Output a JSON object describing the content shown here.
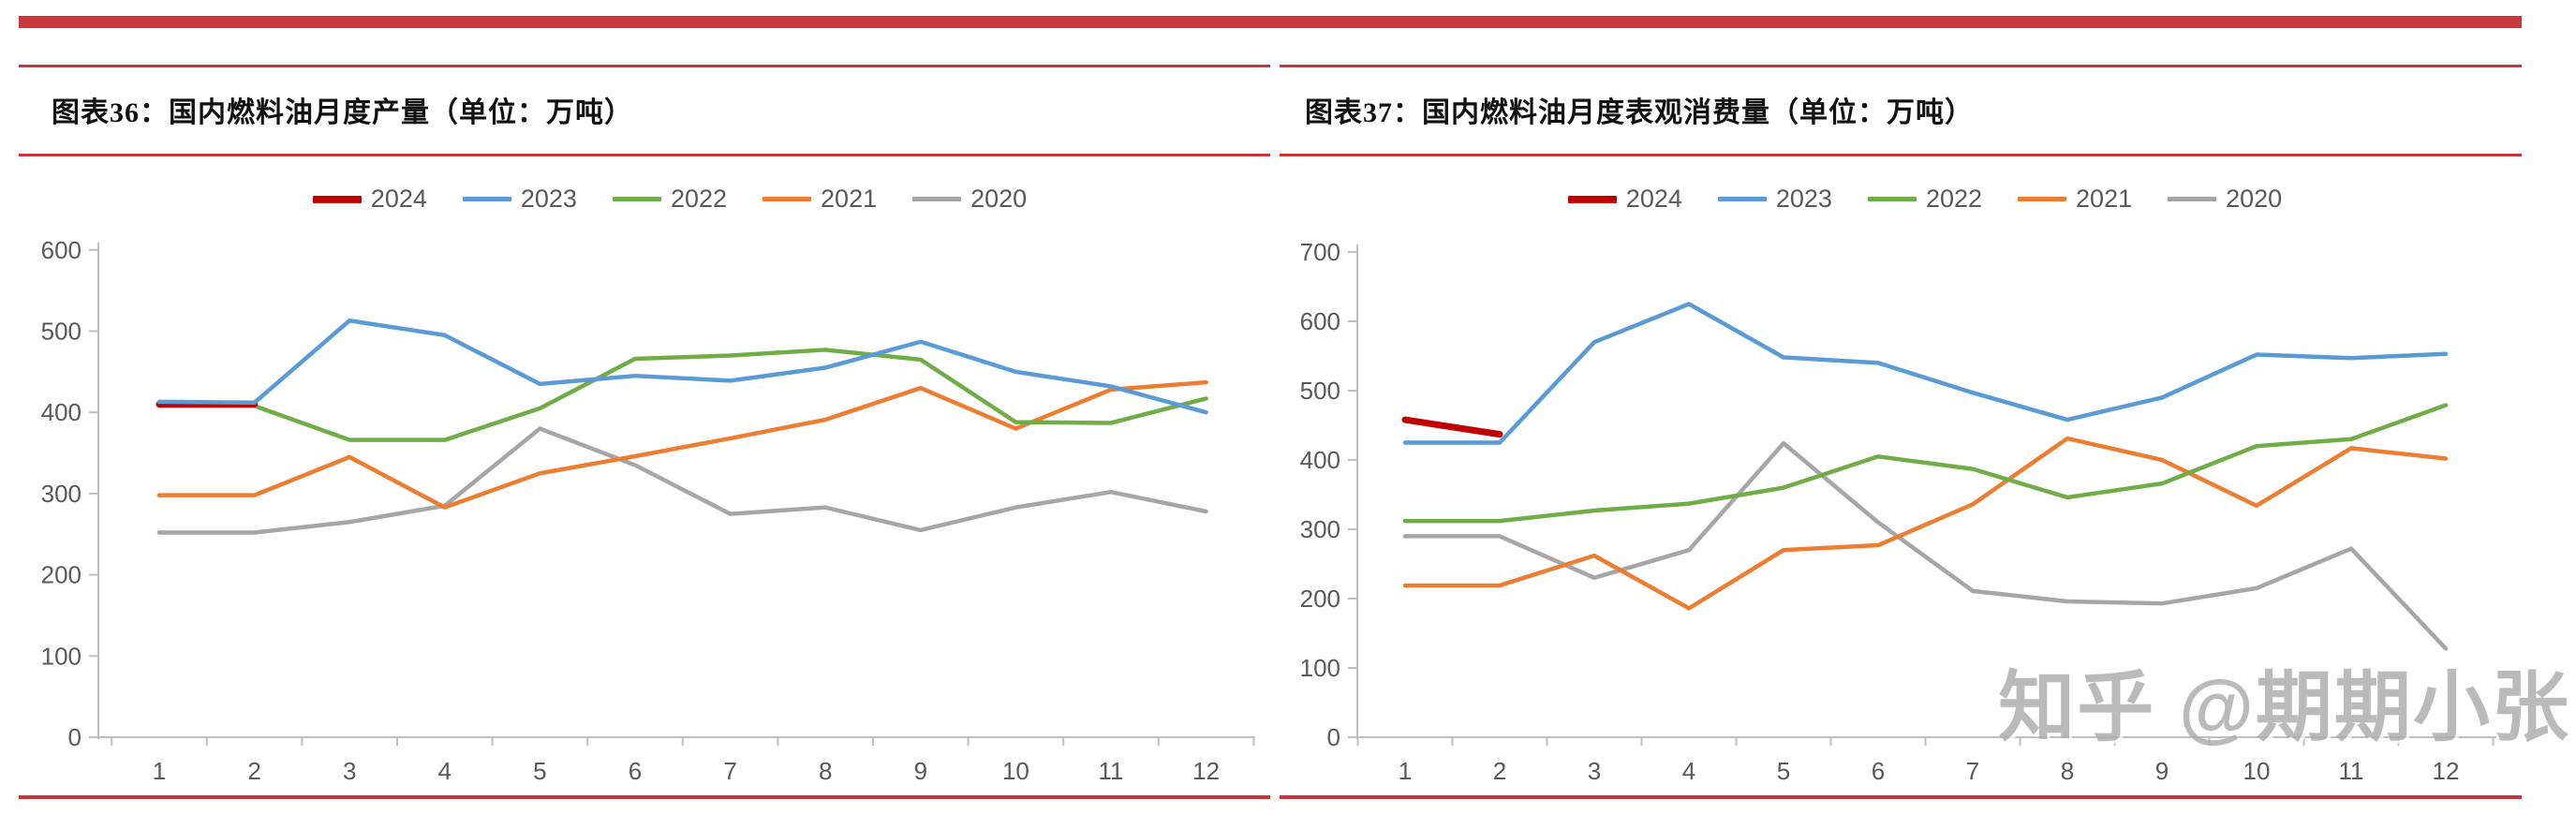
{
  "watermark": {
    "text": "知乎 @期期小张"
  },
  "accent_rule_color": "#c4373c",
  "axis_color": "#bfbfbf",
  "label_color": "#595959",
  "chart_data": [
    {
      "type": "line",
      "title": "图表36：国内燃料油月度产量（单位：万吨）",
      "unit": "万吨",
      "categories": [
        "1",
        "2",
        "3",
        "4",
        "5",
        "6",
        "7",
        "8",
        "9",
        "10",
        "11",
        "12"
      ],
      "ylim": [
        0,
        600
      ],
      "ytick_step": 100,
      "yticks": [
        0,
        100,
        200,
        300,
        400,
        500,
        600
      ],
      "grid": false,
      "legend_position": "top",
      "series": [
        {
          "name": "2024",
          "color": "#c00000",
          "thick": true,
          "values": [
            410,
            410
          ]
        },
        {
          "name": "2023",
          "color": "#5b9bd5",
          "values": [
            413,
            412,
            513,
            495,
            435,
            445,
            439,
            455,
            487,
            450,
            432,
            400
          ]
        },
        {
          "name": "2022",
          "color": "#70ad47",
          "values": [
            408,
            408,
            366,
            366,
            405,
            466,
            470,
            477,
            465,
            388,
            387,
            417
          ]
        },
        {
          "name": "2021",
          "color": "#ed7d31",
          "values": [
            298,
            298,
            345,
            283,
            325,
            346,
            368,
            391,
            430,
            380,
            428,
            437
          ]
        },
        {
          "name": "2020",
          "color": "#a6a6a6",
          "values": [
            252,
            252,
            265,
            285,
            380,
            335,
            275,
            283,
            255,
            283,
            302,
            278
          ]
        }
      ]
    },
    {
      "type": "line",
      "title": "图表37：国内燃料油月度表观消费量（单位：万吨）",
      "unit": "万吨",
      "categories": [
        "1",
        "2",
        "3",
        "4",
        "5",
        "6",
        "7",
        "8",
        "9",
        "10",
        "11",
        "12"
      ],
      "ylim": [
        0,
        700
      ],
      "ytick_step": 100,
      "yticks": [
        0,
        100,
        200,
        300,
        400,
        500,
        600,
        700
      ],
      "grid": false,
      "legend_position": "top",
      "series": [
        {
          "name": "2024",
          "color": "#c00000",
          "thick": true,
          "values": [
            458,
            437
          ]
        },
        {
          "name": "2023",
          "color": "#5b9bd5",
          "values": [
            425,
            425,
            570,
            625,
            548,
            540,
            497,
            458,
            490,
            552,
            547,
            553
          ]
        },
        {
          "name": "2022",
          "color": "#70ad47",
          "values": [
            312,
            312,
            327,
            337,
            360,
            405,
            387,
            346,
            366,
            420,
            430,
            479
          ]
        },
        {
          "name": "2021",
          "color": "#ed7d31",
          "values": [
            219,
            219,
            262,
            186,
            270,
            277,
            336,
            431,
            400,
            334,
            417,
            402
          ]
        },
        {
          "name": "2020",
          "color": "#a6a6a6",
          "values": [
            290,
            290,
            230,
            270,
            424,
            310,
            211,
            196,
            193,
            215,
            272,
            128
          ]
        }
      ]
    }
  ]
}
